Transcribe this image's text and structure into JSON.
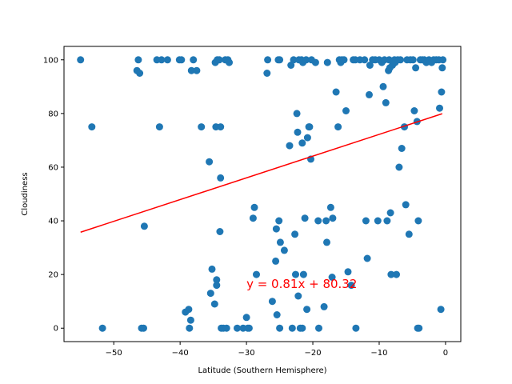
{
  "chart_data": {
    "type": "scatter",
    "xlabel": "Latitude (Southern Hemisphere)",
    "ylabel": "Cloudiness",
    "xlim": [
      -57.5,
      2.3
    ],
    "ylim": [
      -5,
      105
    ],
    "x_ticks": [
      -50,
      -40,
      -30,
      -20,
      -10,
      0
    ],
    "y_ticks": [
      0,
      20,
      40,
      60,
      80,
      100
    ],
    "x_tick_labels": [
      "−50",
      "−40",
      "−30",
      "−20",
      "−10",
      "0"
    ],
    "y_tick_labels": [
      "0",
      "20",
      "40",
      "60",
      "80",
      "100"
    ],
    "grid": false,
    "colors": {
      "points": "#1f77b4",
      "regression": "#ff0000",
      "annotation": "#ff0000"
    },
    "regression": {
      "slope": 0.81,
      "intercept": 80.32,
      "x_range": [
        -55.0,
        -0.5
      ]
    },
    "annotation": {
      "text": "y = 0.81x + 80.32",
      "x": -30,
      "y": 15
    },
    "points": [
      [
        -55,
        100
      ],
      [
        -53.3,
        75
      ],
      [
        -51.7,
        0
      ],
      [
        -46.5,
        96
      ],
      [
        -46.3,
        100
      ],
      [
        -46.1,
        95
      ],
      [
        -45.8,
        0
      ],
      [
        -45.5,
        0
      ],
      [
        -45.4,
        38
      ],
      [
        -43.5,
        100
      ],
      [
        -43.1,
        75
      ],
      [
        -42.8,
        100
      ],
      [
        -41.9,
        100
      ],
      [
        -40.1,
        100
      ],
      [
        -39.8,
        100
      ],
      [
        -39.2,
        6
      ],
      [
        -38.7,
        7
      ],
      [
        -38.6,
        0
      ],
      [
        -38.4,
        3
      ],
      [
        -38.3,
        96
      ],
      [
        -38,
        100
      ],
      [
        -37.5,
        96
      ],
      [
        -36.8,
        75
      ],
      [
        -35.6,
        62
      ],
      [
        -35.4,
        13
      ],
      [
        -35.2,
        22
      ],
      [
        -34.8,
        9
      ],
      [
        -34.7,
        99
      ],
      [
        -34.6,
        75
      ],
      [
        -34.5,
        18
      ],
      [
        -34.5,
        16
      ],
      [
        -34.4,
        100
      ],
      [
        -34.1,
        100
      ],
      [
        -34,
        36
      ],
      [
        -33.9,
        75
      ],
      [
        -33.9,
        56
      ],
      [
        -33.8,
        0
      ],
      [
        -33.5,
        0
      ],
      [
        -33.2,
        100
      ],
      [
        -33,
        0
      ],
      [
        -32.8,
        100
      ],
      [
        -32.6,
        99
      ],
      [
        -31.4,
        0
      ],
      [
        -30.5,
        0
      ],
      [
        -30,
        4
      ],
      [
        -29.8,
        0
      ],
      [
        -29.6,
        0
      ],
      [
        -29,
        41
      ],
      [
        -28.8,
        45
      ],
      [
        -28.5,
        20
      ],
      [
        -26.8,
        100
      ],
      [
        -26.9,
        95
      ],
      [
        -26.1,
        10
      ],
      [
        -25.6,
        25
      ],
      [
        -25.5,
        37
      ],
      [
        -25.4,
        5
      ],
      [
        -25.2,
        100
      ],
      [
        -25,
        100
      ],
      [
        -25.1,
        40
      ],
      [
        -25,
        0
      ],
      [
        -24.9,
        32
      ],
      [
        -24.3,
        29
      ],
      [
        -23.5,
        68
      ],
      [
        -23.3,
        98
      ],
      [
        -23.1,
        0
      ],
      [
        -22.9,
        100
      ],
      [
        -22.7,
        35
      ],
      [
        -22.6,
        20
      ],
      [
        -22.4,
        80
      ],
      [
        -22.3,
        73
      ],
      [
        -22.2,
        12
      ],
      [
        -22.1,
        100
      ],
      [
        -21.9,
        0
      ],
      [
        -21.7,
        100
      ],
      [
        -21.6,
        0
      ],
      [
        -21.6,
        69
      ],
      [
        -21.5,
        99
      ],
      [
        -21.4,
        20
      ],
      [
        -21.2,
        41
      ],
      [
        -21,
        100
      ],
      [
        -20.9,
        7
      ],
      [
        -20.8,
        71
      ],
      [
        -20.6,
        75
      ],
      [
        -20.5,
        75
      ],
      [
        -20.3,
        63
      ],
      [
        -20.2,
        100
      ],
      [
        -19.6,
        99
      ],
      [
        -19.2,
        40
      ],
      [
        -19.1,
        0
      ],
      [
        -18.3,
        8
      ],
      [
        -18,
        40
      ],
      [
        -17.9,
        32
      ],
      [
        -17.8,
        99
      ],
      [
        -17.3,
        45
      ],
      [
        -17.1,
        19
      ],
      [
        -17,
        41
      ],
      [
        -16.5,
        88
      ],
      [
        -16.2,
        75
      ],
      [
        -16,
        100
      ],
      [
        -15.8,
        99
      ],
      [
        -15.6,
        100
      ],
      [
        -15.3,
        100
      ],
      [
        -15,
        81
      ],
      [
        -14.7,
        21
      ],
      [
        -14.2,
        16
      ],
      [
        -13.9,
        100
      ],
      [
        -13.6,
        100
      ],
      [
        -13.5,
        0
      ],
      [
        -12.9,
        100
      ],
      [
        -12.2,
        100
      ],
      [
        -12,
        40
      ],
      [
        -11.8,
        26
      ],
      [
        -11.5,
        87
      ],
      [
        -11.4,
        98
      ],
      [
        -11,
        100
      ],
      [
        -10.6,
        100
      ],
      [
        -10.2,
        40
      ],
      [
        -10,
        100
      ],
      [
        -9.6,
        99
      ],
      [
        -9.4,
        90
      ],
      [
        -9.2,
        100
      ],
      [
        -9,
        84
      ],
      [
        -8.8,
        40
      ],
      [
        -8.6,
        96
      ],
      [
        -8.5,
        100
      ],
      [
        -8.4,
        97
      ],
      [
        -8.3,
        43
      ],
      [
        -8.2,
        20
      ],
      [
        -8,
        98
      ],
      [
        -7.7,
        100
      ],
      [
        -7.6,
        99
      ],
      [
        -7.4,
        20
      ],
      [
        -7.2,
        100
      ],
      [
        -7,
        60
      ],
      [
        -6.8,
        100
      ],
      [
        -6.6,
        67
      ],
      [
        -6.2,
        75
      ],
      [
        -6,
        46
      ],
      [
        -5.8,
        100
      ],
      [
        -5.5,
        35
      ],
      [
        -5.3,
        100
      ],
      [
        -4.9,
        100
      ],
      [
        -4.7,
        81
      ],
      [
        -4.5,
        97
      ],
      [
        -4.3,
        77
      ],
      [
        -4.2,
        0
      ],
      [
        -4.1,
        40
      ],
      [
        -4,
        0
      ],
      [
        -3.8,
        100
      ],
      [
        -3.5,
        100
      ],
      [
        -3.2,
        100
      ],
      [
        -2.9,
        99
      ],
      [
        -2.5,
        100
      ],
      [
        -2.1,
        99
      ],
      [
        -1.8,
        100
      ],
      [
        -1.4,
        100
      ],
      [
        -1,
        100
      ],
      [
        -0.9,
        82
      ],
      [
        -0.7,
        7
      ],
      [
        -0.6,
        88
      ],
      [
        -0.5,
        97
      ],
      [
        -0.4,
        100
      ]
    ]
  }
}
